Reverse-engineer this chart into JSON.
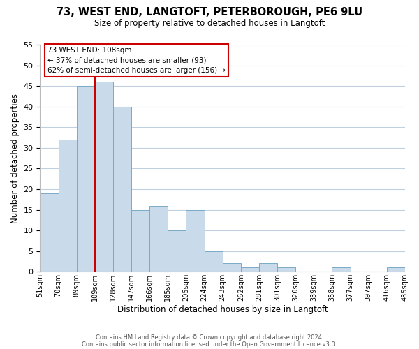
{
  "title": "73, WEST END, LANGTOFT, PETERBOROUGH, PE6 9LU",
  "subtitle": "Size of property relative to detached houses in Langtoft",
  "xlabel": "Distribution of detached houses by size in Langtoft",
  "ylabel": "Number of detached properties",
  "bar_values": [
    19,
    32,
    45,
    46,
    40,
    15,
    16,
    10,
    15,
    5,
    2,
    1,
    2,
    1,
    0,
    0,
    1,
    0,
    0,
    1
  ],
  "bar_labels": [
    "51sqm",
    "70sqm",
    "89sqm",
    "109sqm",
    "128sqm",
    "147sqm",
    "166sqm",
    "185sqm",
    "205sqm",
    "224sqm",
    "243sqm",
    "262sqm",
    "281sqm",
    "301sqm",
    "320sqm",
    "339sqm",
    "358sqm",
    "377sqm",
    "397sqm",
    "416sqm",
    "435sqm"
  ],
  "bar_color": "#c9daea",
  "bar_edge_color": "#7aaac8",
  "vline_color": "#cc0000",
  "ylim": [
    0,
    55
  ],
  "yticks": [
    0,
    5,
    10,
    15,
    20,
    25,
    30,
    35,
    40,
    45,
    50,
    55
  ],
  "annotation_title": "73 WEST END: 108sqm",
  "annotation_line1": "← 37% of detached houses are smaller (93)",
  "annotation_line2": "62% of semi-detached houses are larger (156) →",
  "annotation_box_color": "#ffffff",
  "annotation_box_edge": "#cc0000",
  "footer_line1": "Contains HM Land Registry data © Crown copyright and database right 2024.",
  "footer_line2": "Contains public sector information licensed under the Open Government Licence v3.0.",
  "background_color": "#ffffff",
  "grid_color": "#c0d0e0"
}
